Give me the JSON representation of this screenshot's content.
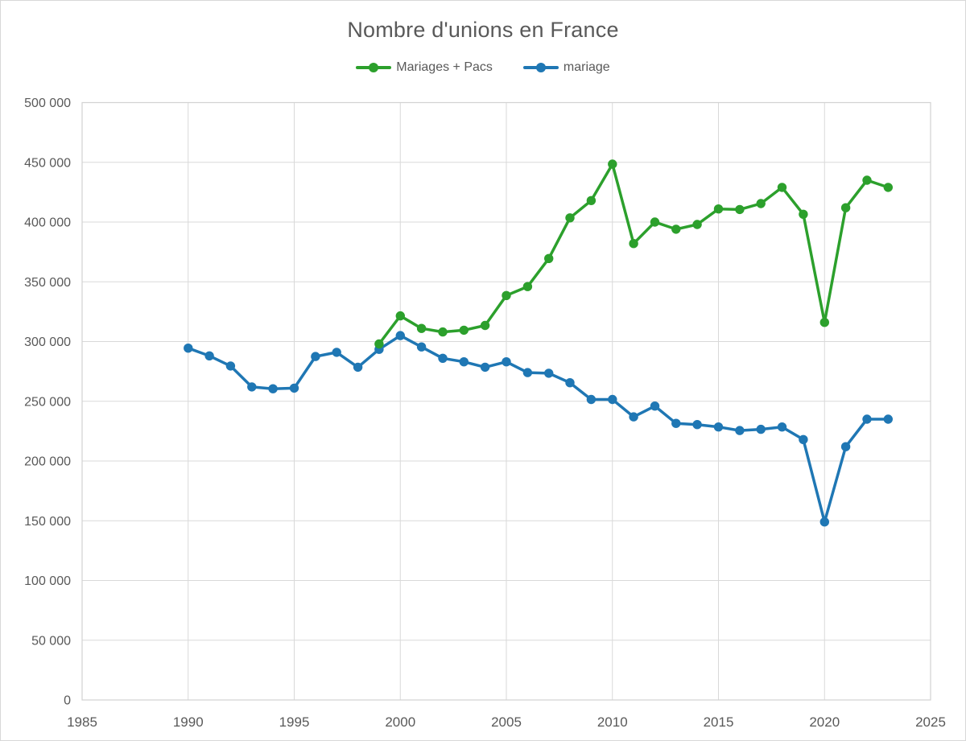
{
  "title": "Nombre d'unions en France",
  "colors": {
    "background": "#ffffff",
    "grid": "#d9d9d9",
    "plot_border": "#d2d2d2",
    "axis_text": "#595959",
    "title_text": "#595959",
    "series_green": "#2ca02c",
    "series_blue": "#1f77b4"
  },
  "legend": {
    "items": [
      {
        "label": "Mariages + Pacs",
        "color": "#2ca02c"
      },
      {
        "label": "mariage",
        "color": "#1f77b4"
      }
    ]
  },
  "axes": {
    "x_tick_labels": [
      "1985",
      "1990",
      "1995",
      "2000",
      "2005",
      "2010",
      "2015",
      "2020",
      "2025"
    ],
    "y_tick_labels": [
      "0",
      "50 000",
      "100 000",
      "150 000",
      "200 000",
      "250 000",
      "300 000",
      "350 000",
      "400 000",
      "450 000",
      "500 000"
    ]
  },
  "chart_data": {
    "type": "line",
    "title": "Nombre d'unions en France",
    "xlabel": "",
    "ylabel": "",
    "xlim": [
      1985,
      2025
    ],
    "ylim": [
      0,
      500000
    ],
    "x_ticks": [
      1985,
      1990,
      1995,
      2000,
      2005,
      2010,
      2015,
      2020,
      2025
    ],
    "y_ticks": [
      0,
      50000,
      100000,
      150000,
      200000,
      250000,
      300000,
      350000,
      400000,
      450000,
      500000
    ],
    "grid": true,
    "legend_position": "top",
    "series": [
      {
        "name": "mariage",
        "color": "#1f77b4",
        "x": [
          1990,
          1991,
          1992,
          1993,
          1994,
          1995,
          1996,
          1997,
          1998,
          1999,
          2000,
          2001,
          2002,
          2003,
          2004,
          2005,
          2006,
          2007,
          2008,
          2009,
          2010,
          2011,
          2012,
          2013,
          2014,
          2015,
          2016,
          2017,
          2018,
          2019,
          2020,
          2021,
          2022,
          2023
        ],
        "values": [
          294500,
          288000,
          279500,
          262000,
          260500,
          261000,
          287500,
          291000,
          278500,
          293500,
          305000,
          295500,
          286000,
          283000,
          278500,
          283000,
          274000,
          273500,
          265500,
          251500,
          251500,
          237000,
          246000,
          231500,
          230500,
          228500,
          225500,
          226500,
          228500,
          218000,
          149000,
          212000,
          235000,
          235000
        ]
      },
      {
        "name": "Mariages + Pacs",
        "color": "#2ca02c",
        "x": [
          1999,
          2000,
          2001,
          2002,
          2003,
          2004,
          2005,
          2006,
          2007,
          2008,
          2009,
          2010,
          2011,
          2012,
          2013,
          2014,
          2015,
          2016,
          2017,
          2018,
          2019,
          2020,
          2021,
          2022,
          2023
        ],
        "values": [
          298000,
          321500,
          311000,
          308000,
          309500,
          313500,
          338500,
          346000,
          369500,
          403500,
          418000,
          448500,
          382000,
          400000,
          394000,
          398000,
          411000,
          410500,
          415500,
          429000,
          406500,
          316000,
          412000,
          435000,
          429000
        ]
      }
    ]
  }
}
